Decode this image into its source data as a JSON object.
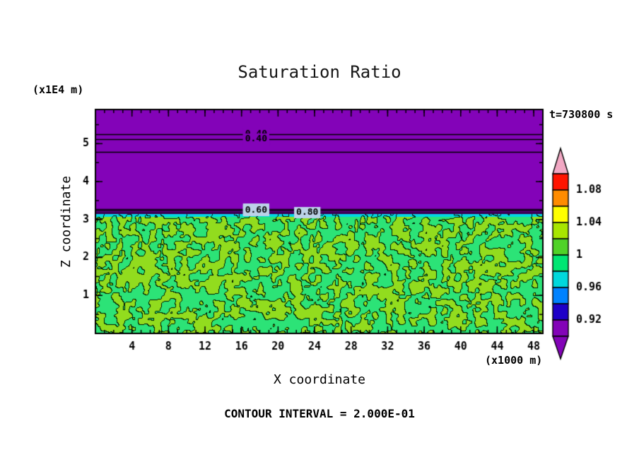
{
  "chart_data": {
    "type": "heatmap",
    "title": "Saturation Ratio",
    "timestamp": "t=730800 s",
    "xlabel": "X coordinate",
    "ylabel": "Z coordinate",
    "x_unit": "(x1000 m)",
    "z_unit": "(x1E4 m)",
    "contour_note": "CONTOUR INTERVAL = 2.000E-01",
    "contour_interval": 0.2,
    "x_range": [
      0,
      49
    ],
    "z_range": [
      0,
      5.9
    ],
    "x_ticks": [
      4,
      8,
      12,
      16,
      20,
      24,
      28,
      32,
      36,
      40,
      44,
      48
    ],
    "x_minor_step": 1,
    "z_ticks": [
      1,
      2,
      3,
      4,
      5
    ],
    "z_minor_step": 0.5,
    "frame_color": "#000000",
    "field": {
      "upper_region": {
        "z_from": 3.15,
        "z_to": 5.9,
        "color": "#8303B8"
      },
      "lower_region": {
        "z_from": 0,
        "z_to": 3.15,
        "base_color": "#2CE377",
        "speckle_color": "#92DC1E",
        "outline_color": "#001A00",
        "interface_strip_color": "#00D8E0"
      }
    },
    "contour_lines": [
      {
        "z": 5.25,
        "label": "0.40",
        "label_x": 17.6,
        "label_bg": "#8303B8"
      },
      {
        "z": 5.12,
        "label": "0.40",
        "label_x": 17.6,
        "label_bg": "#8303B8"
      },
      {
        "z": 4.78
      },
      {
        "z": 3.28,
        "label": "0.60",
        "label_x": 17.6,
        "label_bg": "#BCD2E8"
      },
      {
        "z": 3.23,
        "label": "0.60",
        "label_x": 17.6,
        "label_bg": "#BCD2E8"
      },
      {
        "z": 3.18,
        "label": "0.80",
        "label_x": 23.2,
        "label_bg": "#BCD2E8"
      }
    ],
    "colorbar": {
      "top_wedge_color": "#F2A8C4",
      "bottom_wedge_color": "#8303B8",
      "segments_top_to_bottom": [
        {
          "color": "#FF1400"
        },
        {
          "color": "#FF8C00",
          "label": "1.08"
        },
        {
          "color": "#FFFF00"
        },
        {
          "color": "#A8E600",
          "label": "1.04"
        },
        {
          "color": "#50D228"
        },
        {
          "color": "#00E673",
          "label": "1"
        },
        {
          "color": "#00D8DC"
        },
        {
          "color": "#0082FF",
          "label": "0.96"
        },
        {
          "color": "#1E00C8"
        },
        {
          "color": "#8303B8",
          "label": "0.92"
        }
      ]
    }
  }
}
